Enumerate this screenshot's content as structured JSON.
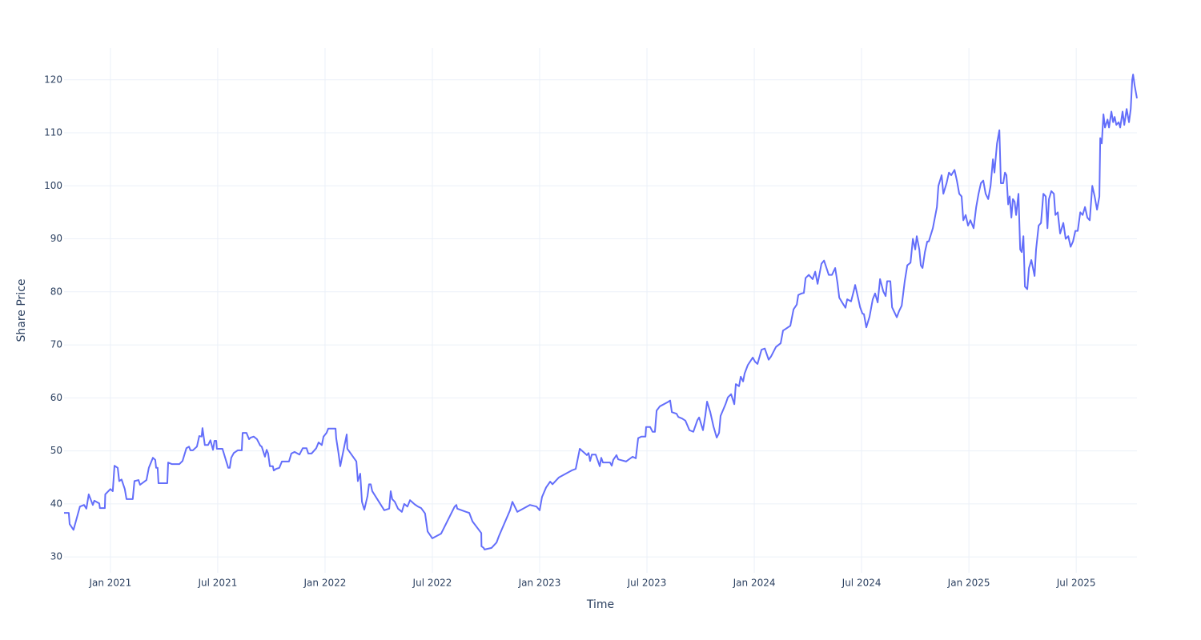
{
  "chart_data": {
    "type": "line",
    "xlabel": "Time",
    "ylabel": "Share Price",
    "color": "#636efa",
    "grid": true,
    "xlim": [
      2020.784,
      2025.783
    ],
    "xticks": [
      {
        "value": 2021,
        "label": "Jan 2021"
      },
      {
        "value": 2021.5,
        "label": "Jul 2021"
      },
      {
        "value": 2022,
        "label": "Jan 2022"
      },
      {
        "value": 2022.5,
        "label": "Jul 2022"
      },
      {
        "value": 2023,
        "label": "Jan 2023"
      },
      {
        "value": 2023.5,
        "label": "Jul 2023"
      },
      {
        "value": 2024,
        "label": "Jan 2024"
      },
      {
        "value": 2024.5,
        "label": "Jul 2024"
      },
      {
        "value": 2025,
        "label": "Jan 2025"
      },
      {
        "value": 2025.5,
        "label": "Jul 2025"
      }
    ],
    "ylim": [
      27,
      126
    ],
    "yticks": [
      30,
      40,
      50,
      60,
      70,
      80,
      90,
      100,
      110,
      120
    ],
    "x": [
      2020.784,
      2020.806,
      2020.81,
      2020.828,
      2020.858,
      2020.877,
      2020.888,
      2020.899,
      2020.918,
      2020.925,
      2020.948,
      2020.951,
      2020.974,
      2020.976,
      2021.0,
      2021.011,
      2021.019,
      2021.034,
      2021.041,
      2021.052,
      2021.067,
      2021.075,
      2021.104,
      2021.112,
      2021.131,
      2021.138,
      2021.168,
      2021.179,
      2021.198,
      2021.209,
      2021.213,
      2021.22,
      2021.224,
      2021.265,
      2021.269,
      2021.287,
      2021.321,
      2021.336,
      2021.354,
      2021.366,
      2021.373,
      2021.384,
      2021.403,
      2021.414,
      2021.425,
      2021.429,
      2021.44,
      2021.455,
      2021.466,
      2021.478,
      2021.485,
      2021.493,
      2021.496,
      2021.522,
      2021.549,
      2021.556,
      2021.563,
      2021.575,
      2021.593,
      2021.612,
      2021.616,
      2021.634,
      2021.646,
      2021.653,
      2021.668,
      2021.683,
      2021.698,
      2021.705,
      2021.72,
      2021.728,
      2021.735,
      2021.743,
      2021.757,
      2021.761,
      2021.772,
      2021.787,
      2021.799,
      2021.832,
      2021.843,
      2021.858,
      2021.881,
      2021.896,
      2021.914,
      2021.922,
      2021.937,
      2021.959,
      2021.97,
      2021.985,
      2021.993,
      2022.007,
      2022.015,
      2022.049,
      2022.052,
      2022.063,
      2022.071,
      2022.082,
      2022.101,
      2022.104,
      2022.146,
      2022.153,
      2022.164,
      2022.172,
      2022.183,
      2022.198,
      2022.205,
      2022.213,
      2022.22,
      2022.276,
      2022.299,
      2022.306,
      2022.313,
      2022.325,
      2022.34,
      2022.358,
      2022.369,
      2022.384,
      2022.396,
      2022.418,
      2022.433,
      2022.448,
      2022.466,
      2022.478,
      2022.5,
      2022.541,
      2022.604,
      2022.612,
      2022.616,
      2022.657,
      2022.672,
      2022.687,
      2022.728,
      2022.729,
      2022.739,
      2022.743,
      2022.776,
      2022.799,
      2022.81,
      2022.862,
      2022.873,
      2022.896,
      2022.955,
      2022.985,
      2023.0,
      2023.011,
      2023.03,
      2023.049,
      2023.06,
      2023.09,
      2023.149,
      2023.168,
      2023.187,
      2023.209,
      2023.22,
      2023.228,
      2023.235,
      2023.243,
      2023.261,
      2023.28,
      2023.287,
      2023.295,
      2023.328,
      2023.336,
      2023.343,
      2023.358,
      2023.366,
      2023.403,
      2023.433,
      2023.448,
      2023.459,
      2023.474,
      2023.493,
      2023.496,
      2023.515,
      2023.526,
      2023.537,
      2023.545,
      2023.56,
      2023.597,
      2023.608,
      2023.616,
      2023.638,
      2023.646,
      2023.664,
      2023.679,
      2023.698,
      2023.716,
      2023.735,
      2023.743,
      2023.761,
      2023.772,
      2023.78,
      2023.795,
      2023.81,
      2023.825,
      2023.836,
      2023.843,
      2023.866,
      2023.877,
      2023.892,
      2023.907,
      2023.914,
      2023.929,
      2023.937,
      2023.948,
      2023.955,
      2023.97,
      2023.993,
      2024.004,
      2024.015,
      2024.034,
      2024.049,
      2024.067,
      2024.078,
      2024.101,
      2024.123,
      2024.134,
      2024.146,
      2024.168,
      2024.183,
      2024.198,
      2024.205,
      2024.22,
      2024.231,
      2024.239,
      2024.254,
      2024.272,
      2024.284,
      2024.295,
      2024.313,
      2024.325,
      2024.347,
      2024.362,
      2024.377,
      2024.388,
      2024.396,
      2024.414,
      2024.425,
      2024.433,
      2024.451,
      2024.463,
      2024.47,
      2024.485,
      2024.493,
      2024.504,
      2024.511,
      2024.522,
      2024.537,
      2024.552,
      2024.563,
      2024.575,
      2024.586,
      2024.601,
      2024.612,
      2024.619,
      2024.634,
      2024.642,
      2024.664,
      2024.675,
      2024.687,
      2024.701,
      2024.713,
      2024.728,
      2024.739,
      2024.75,
      2024.757,
      2024.769,
      2024.776,
      2024.784,
      2024.795,
      2024.806,
      2024.813,
      2024.832,
      2024.851,
      2024.858,
      2024.873,
      2024.881,
      2024.896,
      2024.907,
      2024.918,
      2024.933,
      2024.944,
      2024.955,
      2024.966,
      2024.974,
      2024.985,
      2024.996,
      2025.007,
      2025.022,
      2025.034,
      2025.045,
      2025.056,
      2025.067,
      2025.078,
      2025.09,
      2025.101,
      2025.112,
      2025.119,
      2025.131,
      2025.142,
      2025.149,
      2025.16,
      2025.168,
      2025.175,
      2025.183,
      2025.19,
      2025.198,
      2025.205,
      2025.213,
      2025.22,
      2025.231,
      2025.239,
      2025.246,
      2025.254,
      2025.261,
      2025.272,
      2025.28,
      2025.291,
      2025.306,
      2025.313,
      2025.325,
      2025.336,
      2025.347,
      2025.358,
      2025.366,
      2025.373,
      2025.384,
      2025.396,
      2025.403,
      2025.414,
      2025.425,
      2025.44,
      2025.451,
      2025.463,
      2025.474,
      2025.485,
      2025.496,
      2025.507,
      2025.519,
      2025.53,
      2025.541,
      2025.552,
      2025.563,
      2025.575,
      2025.586,
      2025.597,
      2025.608,
      2025.612,
      2025.619,
      2025.627,
      2025.634,
      2025.646,
      2025.653,
      2025.664,
      2025.672,
      2025.679,
      2025.687,
      2025.698,
      2025.705,
      2025.716,
      2025.724,
      2025.735,
      2025.746,
      2025.754,
      2025.761,
      2025.765,
      2025.772,
      2025.783
    ],
    "values": [
      38.3,
      38.3,
      36.2,
      35.1,
      39.5,
      39.8,
      39.1,
      41.8,
      39.8,
      40.6,
      40.1,
      39.2,
      39.2,
      41.8,
      42.8,
      42.4,
      47.2,
      46.8,
      44.3,
      44.6,
      42.8,
      40.9,
      40.9,
      44.3,
      44.5,
      43.6,
      44.5,
      46.8,
      48.7,
      48.3,
      46.8,
      46.8,
      43.9,
      43.9,
      47.8,
      47.5,
      47.5,
      48.1,
      50.5,
      50.8,
      50.1,
      50.1,
      50.8,
      52.8,
      52.7,
      54.3,
      51.1,
      51.1,
      52.0,
      50.2,
      51.9,
      51.9,
      50.4,
      50.4,
      46.8,
      46.8,
      48.7,
      49.6,
      50.1,
      50.1,
      53.4,
      53.4,
      52.2,
      52.5,
      52.7,
      52.2,
      51.0,
      50.8,
      48.9,
      50.2,
      49.5,
      47.1,
      47.1,
      46.3,
      46.6,
      46.8,
      48.0,
      48.0,
      49.5,
      49.8,
      49.3,
      50.5,
      50.5,
      49.5,
      49.5,
      50.5,
      51.6,
      51.1,
      52.7,
      53.4,
      54.2,
      54.2,
      52.4,
      49.5,
      47.1,
      49.3,
      53.1,
      50.4,
      48.0,
      44.3,
      45.7,
      40.4,
      38.9,
      41.5,
      43.7,
      43.7,
      42.4,
      38.8,
      39.1,
      42.4,
      40.9,
      40.4,
      39.1,
      38.5,
      40.0,
      39.5,
      40.7,
      39.9,
      39.5,
      39.2,
      38.2,
      34.8,
      33.5,
      34.4,
      39.5,
      39.8,
      39.1,
      38.5,
      38.3,
      36.7,
      34.5,
      32.0,
      31.7,
      31.4,
      31.7,
      32.7,
      33.9,
      38.8,
      40.4,
      38.5,
      39.8,
      39.5,
      38.8,
      41.3,
      43.1,
      44.2,
      43.7,
      45.0,
      46.3,
      46.6,
      50.4,
      49.6,
      49.2,
      49.6,
      48.1,
      49.3,
      49.3,
      47.1,
      48.7,
      47.8,
      47.8,
      47.2,
      48.3,
      49.2,
      48.4,
      48.0,
      48.9,
      48.6,
      52.4,
      52.7,
      52.7,
      54.5,
      54.5,
      53.6,
      53.6,
      57.6,
      58.4,
      59.2,
      59.5,
      57.3,
      57.0,
      56.4,
      56.1,
      55.7,
      53.9,
      53.6,
      55.8,
      56.3,
      53.9,
      56.7,
      59.3,
      57.3,
      54.6,
      52.5,
      53.4,
      56.6,
      58.8,
      60.1,
      60.7,
      58.8,
      62.6,
      62.2,
      64.0,
      63.1,
      64.6,
      66.2,
      67.6,
      66.8,
      66.4,
      69.1,
      69.3,
      67.2,
      67.8,
      69.6,
      70.3,
      72.7,
      73.0,
      73.6,
      76.7,
      77.6,
      79.4,
      79.7,
      79.8,
      82.6,
      83.2,
      82.4,
      83.8,
      81.5,
      85.3,
      85.9,
      83.2,
      83.2,
      84.5,
      81.6,
      78.9,
      77.7,
      77.0,
      78.6,
      78.2,
      80.1,
      81.3,
      78.6,
      77.1,
      75.9,
      75.8,
      73.3,
      75.3,
      78.6,
      79.7,
      78.0,
      82.4,
      80.1,
      79.2,
      82.0,
      82.0,
      77.1,
      75.2,
      76.4,
      77.4,
      82.0,
      85.0,
      85.5,
      90.0,
      88.0,
      90.5,
      88.0,
      85.0,
      84.5,
      87.5,
      89.5,
      89.5,
      92.0,
      96.0,
      100.0,
      102.0,
      98.5,
      100.5,
      102.5,
      102.0,
      103.0,
      101.0,
      98.5,
      98.0,
      93.5,
      94.5,
      92.5,
      93.5,
      92.0,
      96.0,
      98.5,
      100.5,
      101.0,
      98.5,
      97.5,
      100.0,
      105.0,
      102.5,
      108.0,
      110.5,
      100.5,
      100.5,
      102.5,
      102.0,
      96.5,
      98.0,
      94.0,
      97.5,
      97.0,
      94.5,
      98.5,
      88.0,
      87.5,
      90.5,
      81.0,
      80.5,
      84.5,
      86.0,
      83.0,
      88.0,
      92.5,
      93.0,
      98.5,
      98.0,
      92.0,
      97.5,
      99.0,
      98.5,
      94.5,
      95.0,
      91.0,
      93.0,
      90.0,
      90.5,
      88.5,
      89.5,
      91.5,
      91.5,
      95.0,
      94.5,
      96.0,
      94.0,
      93.5,
      100.0,
      98.0,
      95.5,
      98.0,
      109.0,
      108.0,
      113.5,
      111.0,
      112.5,
      111.0,
      114.0,
      112.0,
      113.0,
      111.5,
      112.0,
      111.0,
      114.0,
      111.5,
      114.5,
      112.0,
      114.5,
      120.0,
      121.0,
      119.0,
      116.5
    ]
  }
}
